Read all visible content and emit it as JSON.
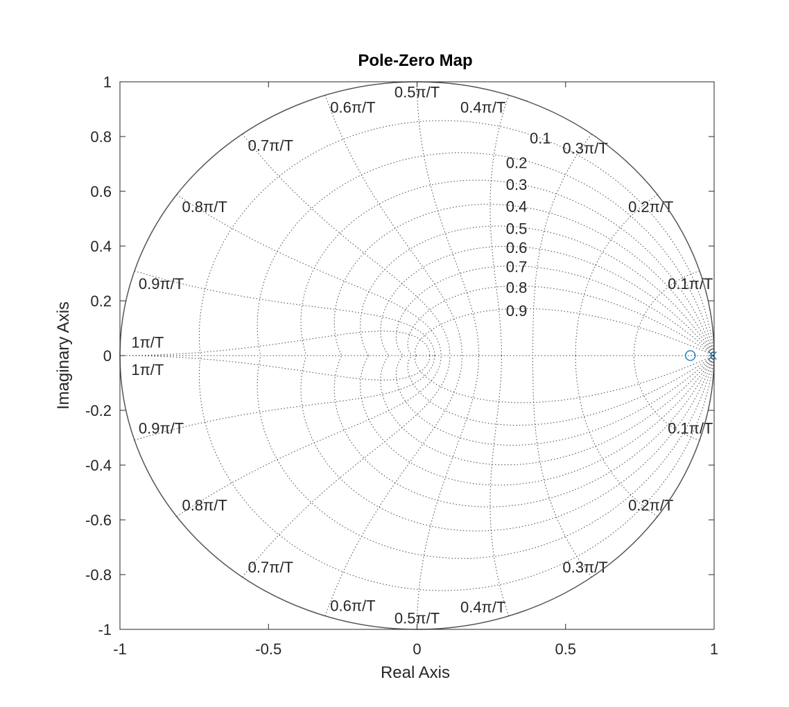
{
  "chart_data": {
    "type": "scatter",
    "title": "Pole-Zero Map",
    "xlabel": "Real Axis",
    "ylabel": "Imaginary Axis",
    "xlim": [
      -1,
      1
    ],
    "ylim": [
      -1,
      1
    ],
    "x_ticks": [
      "-1",
      "-0.5",
      "0",
      "0.5",
      "1"
    ],
    "y_ticks": [
      "1",
      "0.8",
      "0.6",
      "0.4",
      "0.2",
      "0",
      "-0.2",
      "-0.4",
      "-0.6",
      "-0.8",
      "-1"
    ],
    "grid": true,
    "zeta_labels": [
      "0.1",
      "0.2",
      "0.3",
      "0.4",
      "0.5",
      "0.6",
      "0.7",
      "0.8",
      "0.9"
    ],
    "wn_labels_upper": [
      "0.1π/T",
      "0.2π/T",
      "0.3π/T",
      "0.4π/T",
      "0.5π/T",
      "0.6π/T",
      "0.7π/T",
      "0.8π/T",
      "0.9π/T",
      "1π/T"
    ],
    "wn_labels_lower": [
      "0.1π/T",
      "0.2π/T",
      "0.3π/T",
      "0.4π/T",
      "0.5π/T",
      "0.6π/T",
      "0.7π/T",
      "0.8π/T",
      "0.9π/T",
      "1π/T"
    ],
    "zeros": [
      {
        "x": 0.92,
        "y": 0
      }
    ],
    "poles": [
      {
        "x": 0.995,
        "y": 0
      }
    ],
    "colors": {
      "marker": "#0072bd",
      "frame": "#262626",
      "grid": "#444444"
    }
  }
}
